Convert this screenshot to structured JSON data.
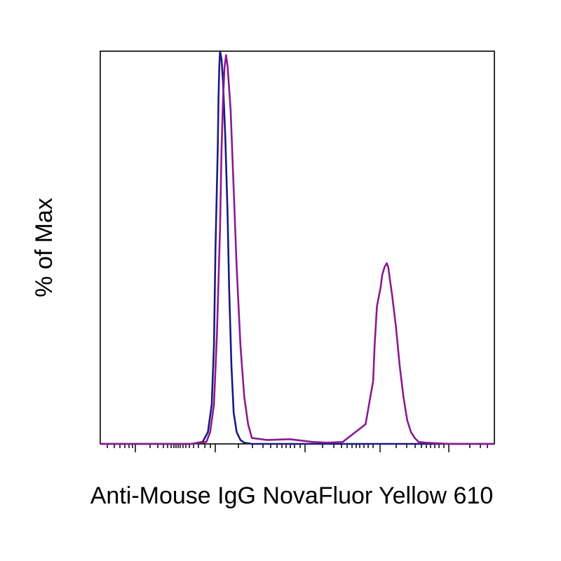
{
  "chart_data": {
    "type": "line",
    "xlabel": "Anti-Mouse IgG NovaFluor Yellow 610",
    "ylabel": "% of Max",
    "x_scale": "log",
    "xlim": [
      -2,
      3.2
    ],
    "ylim": [
      0,
      100
    ],
    "grid": false,
    "series": [
      {
        "color": "#1a1a80",
        "x": [
          -2.0,
          -1.8,
          -1.4,
          -0.8,
          -0.65,
          -0.58,
          -0.53,
          -0.5,
          -0.48,
          -0.45,
          -0.44,
          -0.43,
          -0.42,
          -0.4,
          -0.38,
          -0.35,
          -0.32,
          -0.3,
          -0.27,
          -0.24,
          -0.2,
          -0.15,
          -0.1,
          0.0,
          0.5,
          1.0,
          2.0,
          3.2
        ],
        "y": [
          0,
          0,
          0,
          0,
          0.5,
          3,
          10,
          25,
          50,
          75,
          88,
          96,
          100,
          98,
          92,
          78,
          58,
          40,
          20,
          8,
          3,
          1,
          0.3,
          0,
          0,
          0,
          0,
          0
        ]
      },
      {
        "color": "#8a1a8f",
        "x": [
          -2.0,
          -1.8,
          -1.4,
          -0.8,
          -0.6,
          -0.55,
          -0.5,
          -0.46,
          -0.42,
          -0.4,
          -0.38,
          -0.36,
          -0.34,
          -0.32,
          -0.28,
          -0.24,
          -0.2,
          -0.15,
          -0.1,
          -0.05,
          0.0,
          0.2,
          0.5,
          0.8,
          1.0,
          1.2,
          1.5,
          1.6,
          1.62,
          1.65,
          1.7,
          1.72,
          1.75,
          1.78,
          1.8,
          1.82,
          1.85,
          1.9,
          1.95,
          2.0,
          2.05,
          2.1,
          2.15,
          2.2,
          2.3,
          2.6,
          3.2
        ],
        "y": [
          0,
          0,
          0,
          0,
          0.5,
          3,
          10,
          28,
          55,
          75,
          88,
          96,
          99,
          96,
          85,
          65,
          45,
          25,
          12,
          5,
          1.5,
          1,
          1.2,
          0.5,
          0.3,
          0.5,
          5,
          16,
          25,
          35,
          40,
          43,
          45,
          46,
          45,
          42,
          38,
          30,
          20,
          12,
          6,
          3,
          1.5,
          0.5,
          0.3,
          0,
          0
        ]
      }
    ]
  }
}
